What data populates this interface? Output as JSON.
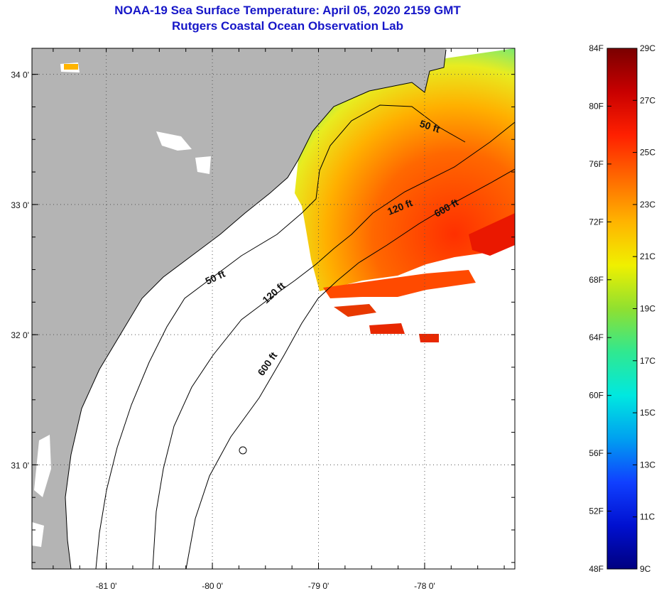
{
  "header": {
    "title": "NOAA-19 Sea Surface Temperature:  April 05, 2020 2159 GMT",
    "subtitle": "Rutgers Coastal Ocean Observation Lab"
  },
  "map": {
    "lon_ticks": [
      {
        "value": -81,
        "label": "-81 0'"
      },
      {
        "value": -80,
        "label": "-80 0'"
      },
      {
        "value": -79,
        "label": "-79 0'"
      },
      {
        "value": -78,
        "label": "-78 0'"
      }
    ],
    "lat_ticks": [
      {
        "value": 34,
        "label": "34 0'"
      },
      {
        "value": 33,
        "label": "33 0'"
      },
      {
        "value": 32,
        "label": "32 0'"
      },
      {
        "value": 31,
        "label": "31 0'"
      }
    ],
    "lon_range": [
      -81.7,
      -77.15
    ],
    "lat_range": [
      30.2,
      34.2
    ],
    "colors": {
      "land": "#b4b4b4",
      "ocean_no_data": "#ffffff",
      "coast": "#000000"
    },
    "contours": [
      {
        "label": "50 ft"
      },
      {
        "label": "120 ft"
      },
      {
        "label": "600 ft"
      },
      {
        "label": "50 ft"
      },
      {
        "label": "120 ft"
      },
      {
        "label": "600 ft"
      }
    ]
  },
  "colorbar": {
    "fahrenheit": [
      "84F",
      "80F",
      "76F",
      "72F",
      "68F",
      "64F",
      "60F",
      "56F",
      "52F",
      "48F"
    ],
    "celsius": [
      "29C",
      "27C",
      "25C",
      "23C",
      "21C",
      "19C",
      "17C",
      "15C",
      "13C",
      "11C",
      "9C"
    ],
    "min_c": 9,
    "max_c": 29,
    "gradient": [
      "#7a0000",
      "#c80000",
      "#ff2000",
      "#ff6a00",
      "#ffb400",
      "#f0f000",
      "#90e030",
      "#30e890",
      "#00e8e0",
      "#00a0f0",
      "#1040ff",
      "#0010d0",
      "#000080"
    ]
  }
}
